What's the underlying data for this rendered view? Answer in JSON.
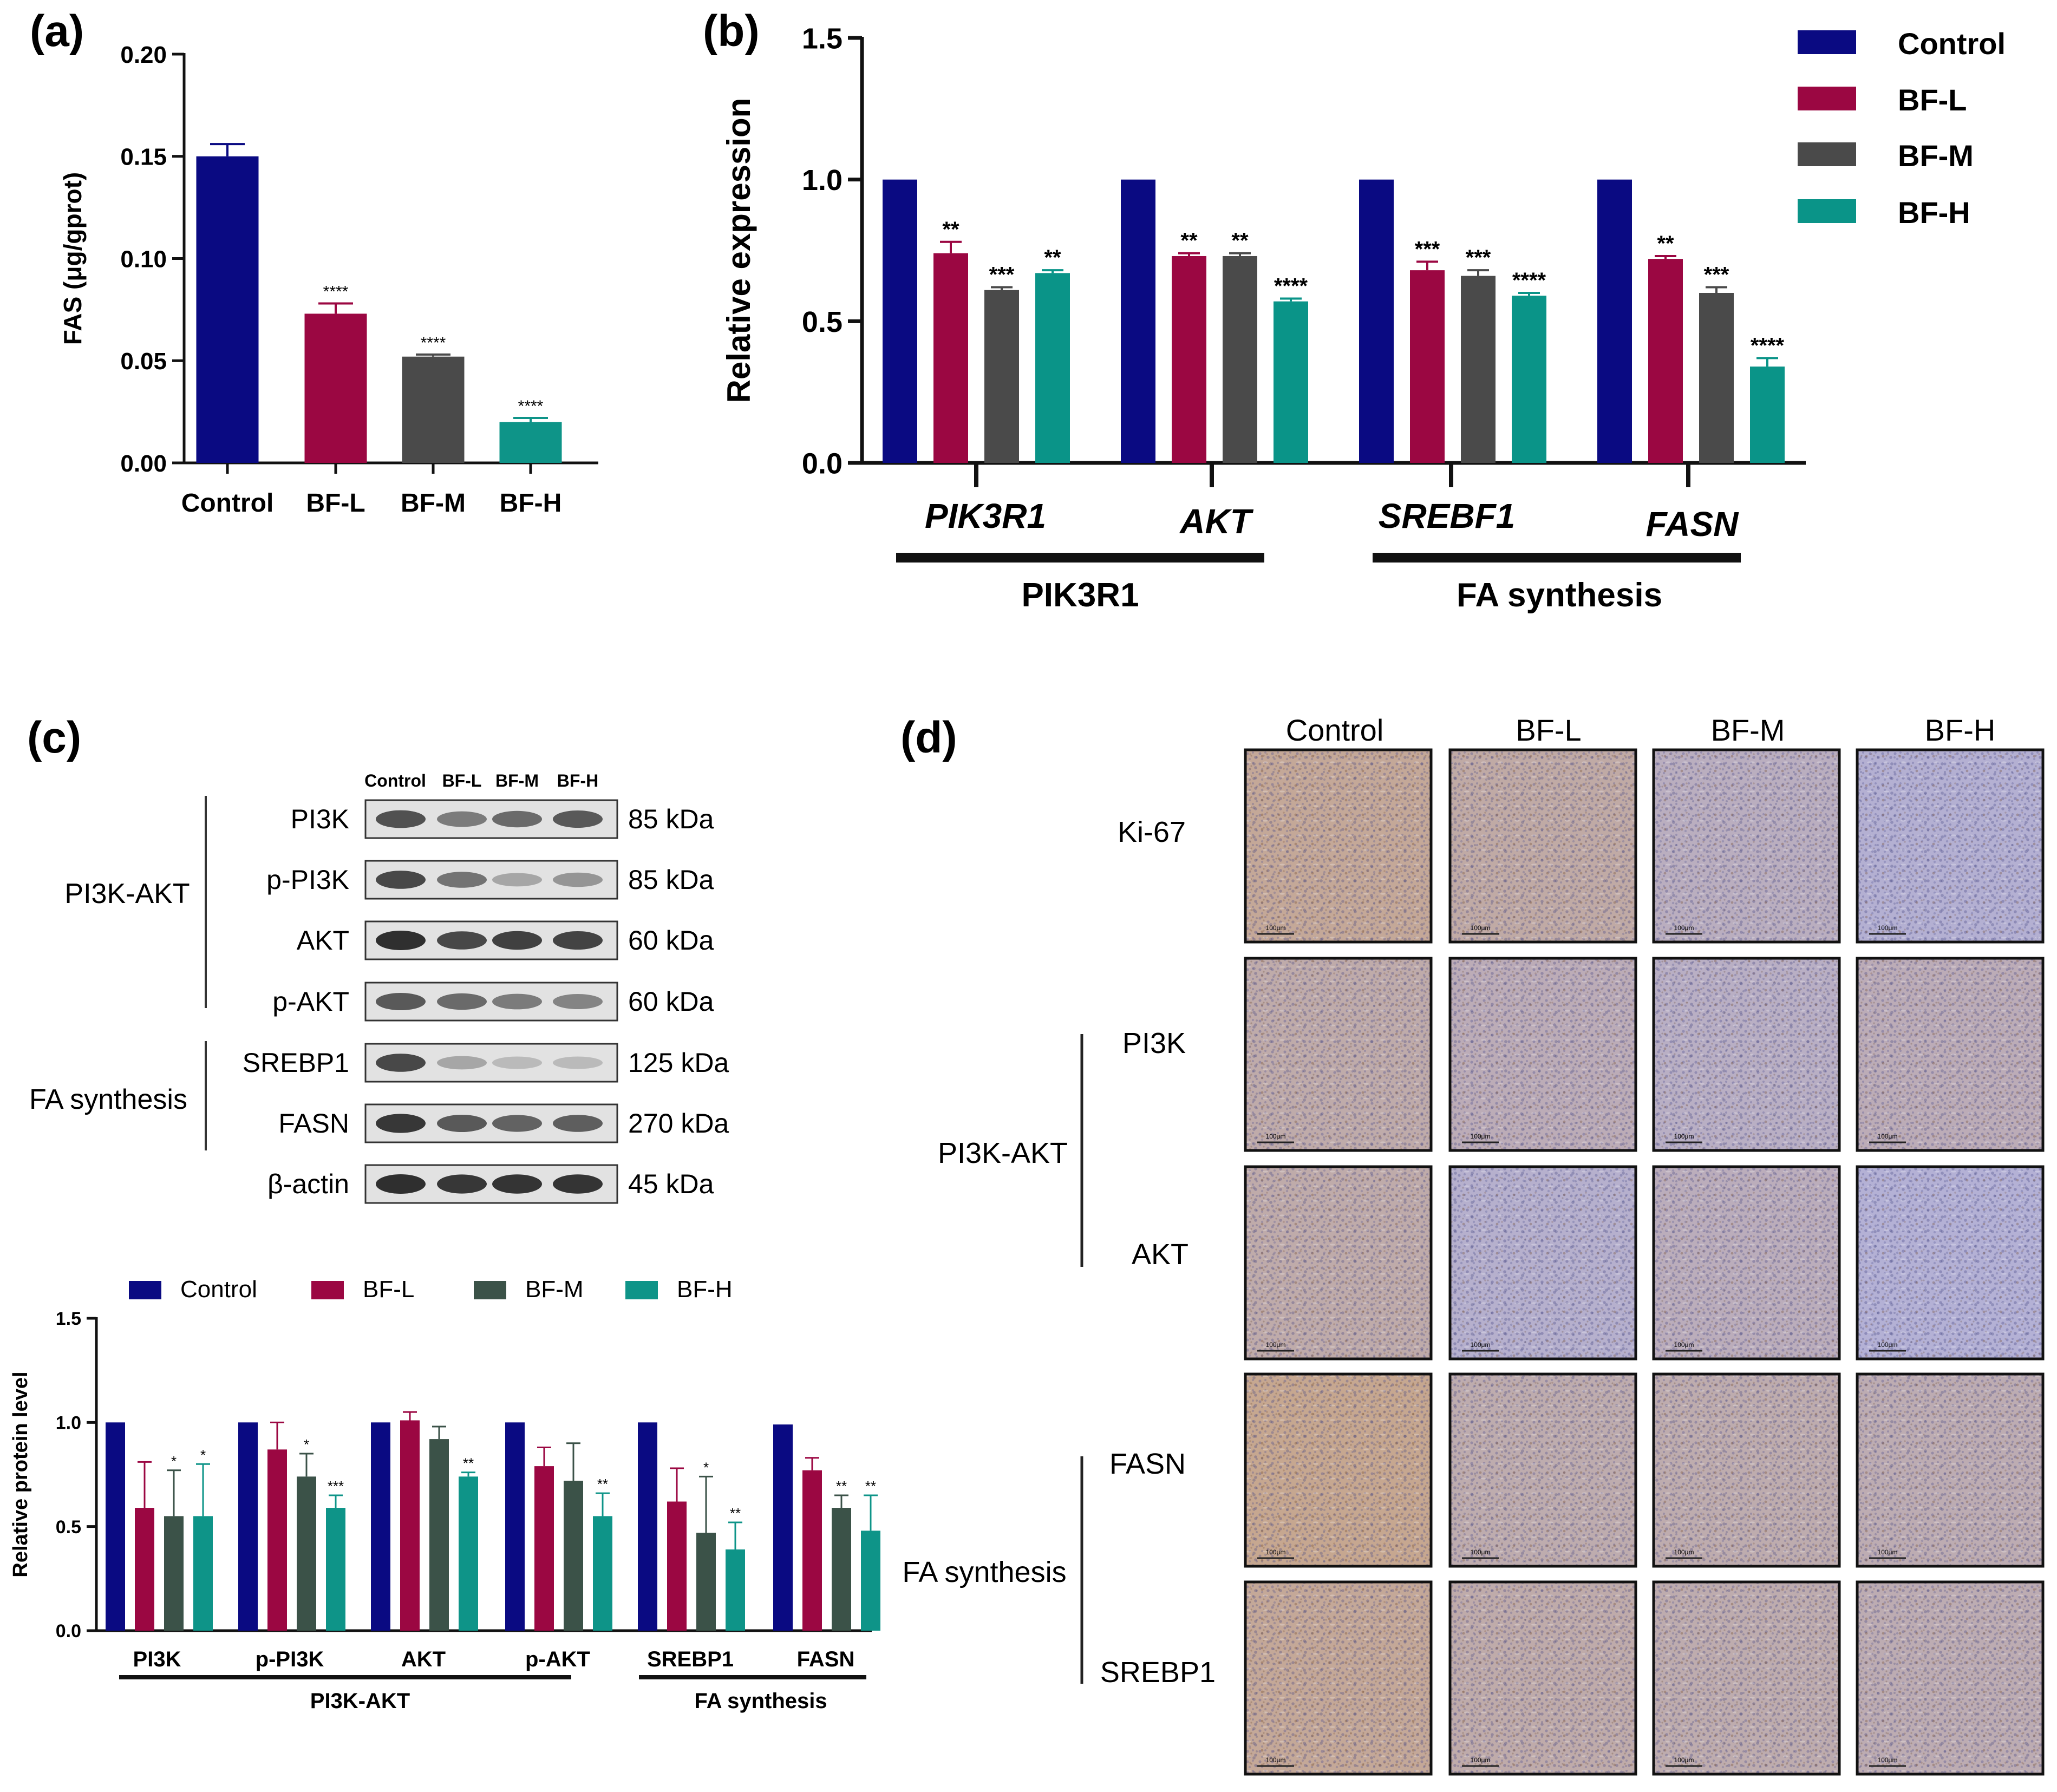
{
  "colors": {
    "control": "#0a0a82",
    "bfl": "#9b0742",
    "bfm_b": "#4a4a4a",
    "bfm_c": "#3b5248",
    "bfh_b": "#0a9488",
    "bfh": "#0e9488",
    "ihc_brown": "#b98b63",
    "ihc_blue": "#8f93c8"
  },
  "panel_labels": {
    "a": "(a)",
    "b": "(b)",
    "c": "(c)",
    "d": "(d)"
  },
  "chart_data": [
    {
      "panel": "a",
      "type": "bar",
      "ylabel": "FAS (μg/gprot)",
      "ylim": [
        0,
        0.2
      ],
      "yticks": [
        "0.00",
        "0.05",
        "0.10",
        "0.15",
        "0.20"
      ],
      "categories": [
        "Control",
        "BF-L",
        "BF-M",
        "BF-H"
      ],
      "values": [
        0.15,
        0.073,
        0.052,
        0.02
      ],
      "errors": [
        0.006,
        0.005,
        0.001,
        0.002
      ],
      "significance": [
        "",
        "****",
        "****",
        "****"
      ]
    },
    {
      "panel": "b",
      "type": "bar",
      "ylabel": "Relative expression",
      "ylim": [
        0,
        1.5
      ],
      "yticks": [
        "0.0",
        "0.5",
        "1.0",
        "1.5"
      ],
      "categories": [
        "PIK3R1",
        "AKT",
        "SREBF1",
        "FASN"
      ],
      "groups": [
        "PIK3R1",
        "FA synthesis"
      ],
      "legend": [
        "Control",
        "BF-L",
        "BF-M",
        "BF-H"
      ],
      "series": [
        {
          "name": "Control",
          "values": [
            1.0,
            1.0,
            1.0,
            1.0
          ],
          "errors": [
            0,
            0,
            0,
            0
          ],
          "sig": [
            "",
            "",
            "",
            ""
          ]
        },
        {
          "name": "BF-L",
          "values": [
            0.74,
            0.73,
            0.68,
            0.72
          ],
          "errors": [
            0.04,
            0.01,
            0.03,
            0.01
          ],
          "sig": [
            "**",
            "**",
            "***",
            "**"
          ]
        },
        {
          "name": "BF-M",
          "values": [
            0.61,
            0.73,
            0.66,
            0.6
          ],
          "errors": [
            0.01,
            0.01,
            0.02,
            0.02
          ],
          "sig": [
            "***",
            "**",
            "***",
            "***"
          ]
        },
        {
          "name": "BF-H",
          "values": [
            0.67,
            0.57,
            0.59,
            0.34
          ],
          "errors": [
            0.01,
            0.01,
            0.01,
            0.03
          ],
          "sig": [
            "**",
            "****",
            "****",
            "****"
          ]
        }
      ]
    },
    {
      "panel": "c",
      "type": "bar",
      "ylabel": "Relative protein level",
      "ylim": [
        0,
        1.5
      ],
      "yticks": [
        "0.0",
        "0.5",
        "1.0",
        "1.5"
      ],
      "categories": [
        "PI3K",
        "p-PI3K",
        "AKT",
        "p-AKT",
        "SREBP1",
        "FASN"
      ],
      "groups": [
        "PI3K-AKT",
        "FA synthesis"
      ],
      "legend": [
        "Control",
        "BF-L",
        "BF-M",
        "BF-H"
      ],
      "series": [
        {
          "name": "Control",
          "values": [
            1.0,
            1.0,
            1.0,
            1.0,
            1.0,
            0.99
          ],
          "errors": [
            0,
            0,
            0,
            0,
            0,
            0
          ],
          "sig": [
            "",
            "",
            "",
            "",
            "",
            ""
          ]
        },
        {
          "name": "BF-L",
          "values": [
            0.59,
            0.87,
            1.01,
            0.79,
            0.62,
            0.77
          ],
          "errors": [
            0.22,
            0.13,
            0.04,
            0.09,
            0.16,
            0.06
          ],
          "sig": [
            "",
            "",
            "",
            "",
            "",
            ""
          ]
        },
        {
          "name": "BF-M",
          "values": [
            0.55,
            0.74,
            0.92,
            0.72,
            0.47,
            0.59
          ],
          "errors": [
            0.22,
            0.11,
            0.06,
            0.18,
            0.27,
            0.06
          ],
          "sig": [
            "*",
            "*",
            "",
            "",
            "*",
            "**"
          ]
        },
        {
          "name": "BF-H",
          "values": [
            0.55,
            0.59,
            0.74,
            0.55,
            0.39,
            0.48
          ],
          "errors": [
            0.25,
            0.06,
            0.02,
            0.11,
            0.13,
            0.17
          ],
          "sig": [
            "*",
            "***",
            "**",
            "**",
            "**",
            "**"
          ]
        }
      ]
    }
  ],
  "western_blot": {
    "lanes": [
      "Control",
      "BF-L",
      "BF-M",
      "BF-H"
    ],
    "groups": [
      "PI3K-AKT",
      "FA synthesis"
    ],
    "rows": [
      {
        "name": "PI3K",
        "size": "85 kDa"
      },
      {
        "name": "p-PI3K",
        "size": "85 kDa"
      },
      {
        "name": "AKT",
        "size": "60 kDa"
      },
      {
        "name": "p-AKT",
        "size": "60 kDa"
      },
      {
        "name": "SREBP1",
        "size": "125 kDa"
      },
      {
        "name": "FASN",
        "size": "270 kDa"
      },
      {
        "name": "β-actin",
        "size": "45 kDa"
      }
    ],
    "intensity": [
      [
        0.8,
        0.55,
        0.65,
        0.75
      ],
      [
        0.85,
        0.6,
        0.3,
        0.4
      ],
      [
        1.0,
        0.85,
        0.9,
        0.88
      ],
      [
        0.75,
        0.65,
        0.55,
        0.5
      ],
      [
        0.85,
        0.3,
        0.18,
        0.18
      ],
      [
        0.95,
        0.75,
        0.7,
        0.72
      ],
      [
        1.0,
        0.95,
        0.97,
        0.97
      ]
    ]
  },
  "ihc": {
    "columns": [
      "Control",
      "BF-L",
      "BF-M",
      "BF-H"
    ],
    "rows": [
      "Ki-67",
      "PI3K",
      "AKT",
      "FASN",
      "SREBP1"
    ],
    "groups": [
      "PI3K-AKT",
      "FA synthesis"
    ],
    "scale_label": "100μm",
    "staining": [
      [
        0.75,
        0.6,
        0.3,
        0.08
      ],
      [
        0.55,
        0.4,
        0.25,
        0.4
      ],
      [
        0.55,
        0.15,
        0.35,
        0.05
      ],
      [
        0.85,
        0.5,
        0.5,
        0.45
      ],
      [
        0.75,
        0.55,
        0.5,
        0.45
      ]
    ]
  }
}
